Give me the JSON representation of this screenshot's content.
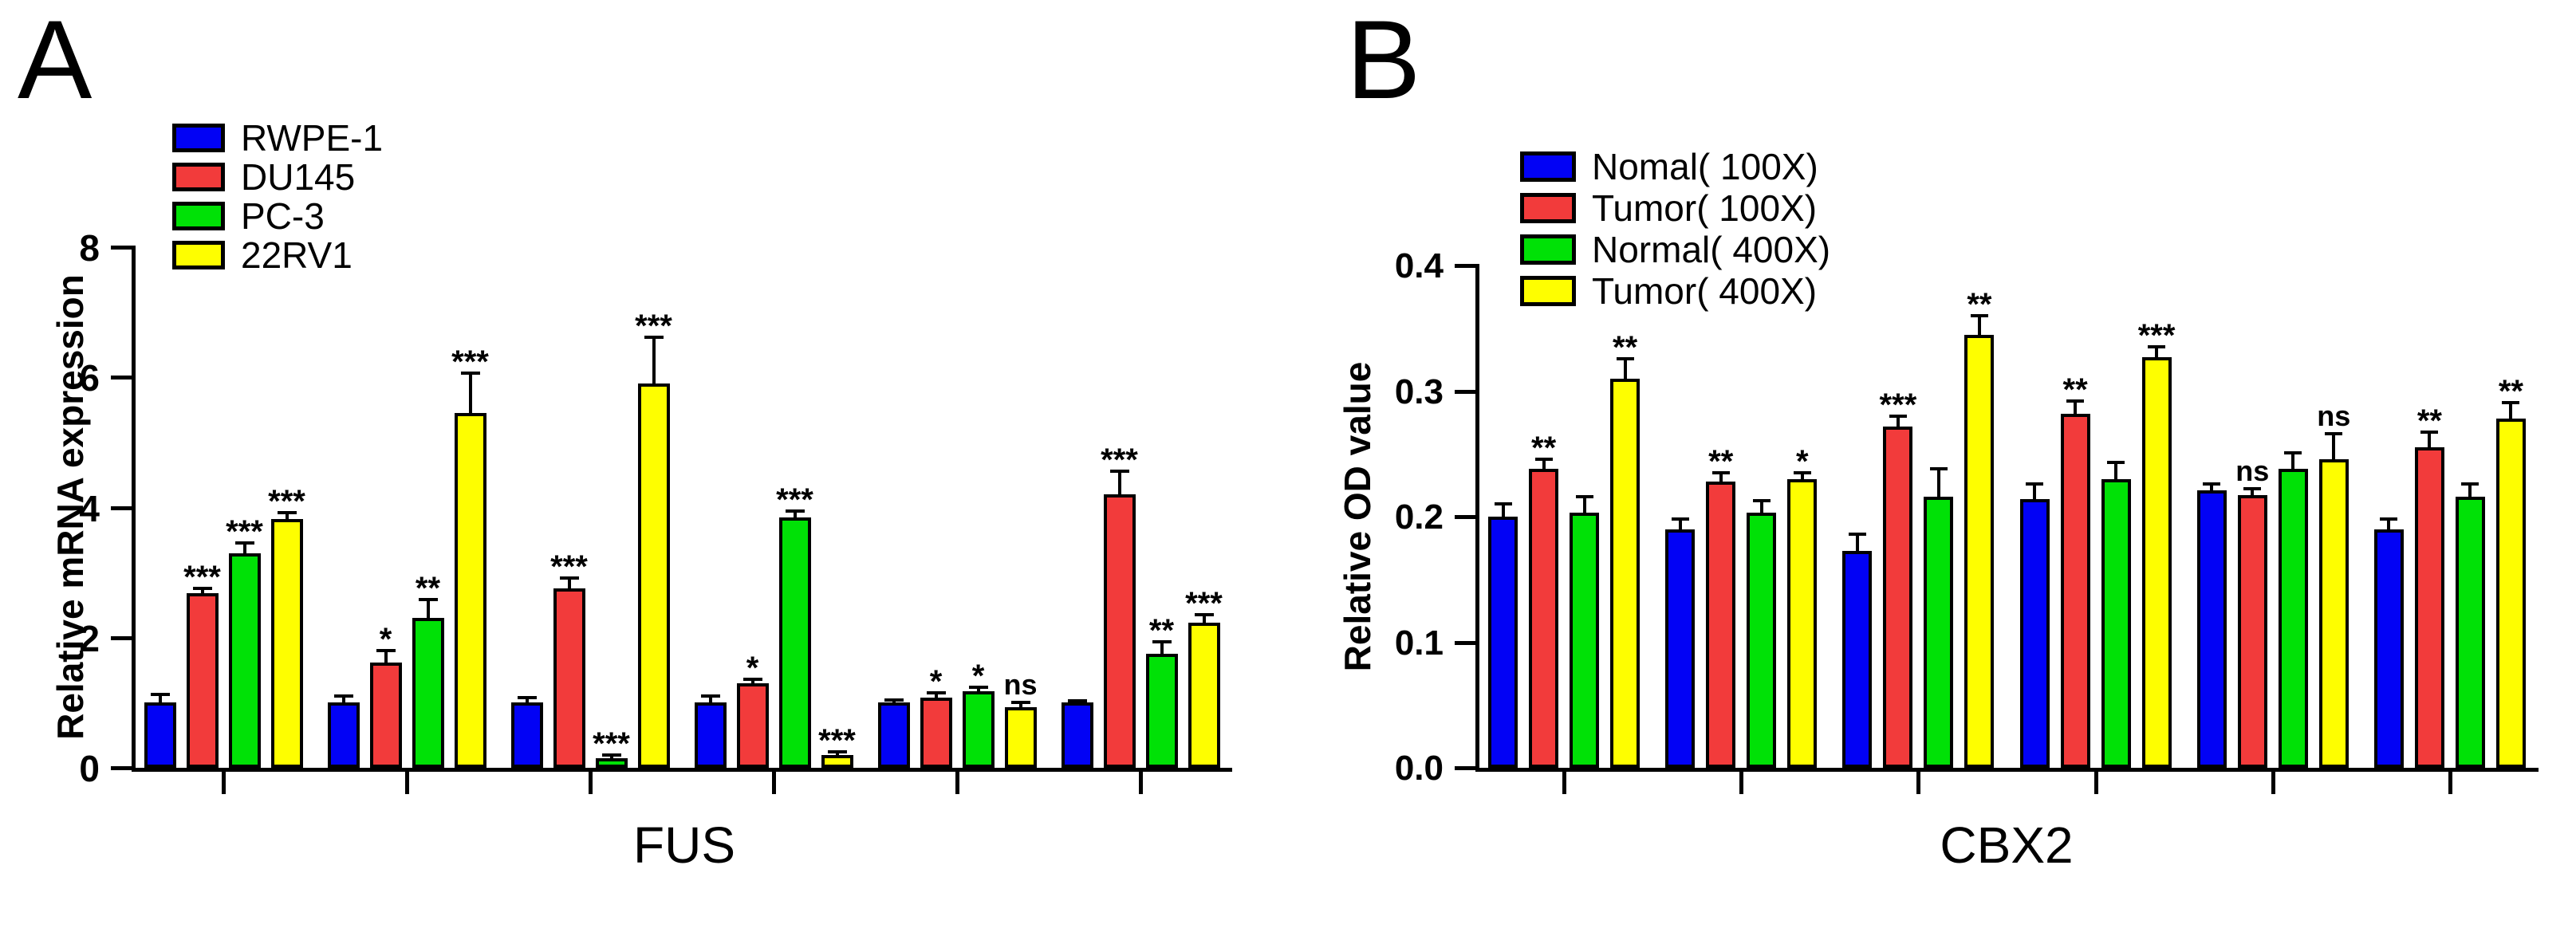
{
  "chart_data": [
    {
      "panel_letter": "A",
      "type": "bar",
      "title": "FUS",
      "ylabel": "Relative mRNA expression",
      "ylim": [
        0,
        8
      ],
      "yticks": [
        {
          "value": 0,
          "label": "0"
        },
        {
          "value": 2,
          "label": "2"
        },
        {
          "value": 4,
          "label": "4"
        },
        {
          "value": 6,
          "label": "6"
        },
        {
          "value": 8,
          "label": "8"
        }
      ],
      "grid": false,
      "legend_position": "top-left-inside",
      "error_bars": "sd-up-only",
      "x_tick_labels": [
        "",
        "",
        "",
        "",
        "",
        ""
      ],
      "group_count": 6,
      "series": [
        {
          "name": "RWPE-1",
          "color": "#0202F5",
          "values": [
            1.0,
            1.0,
            1.0,
            1.0,
            1.0,
            1.0
          ],
          "errors": [
            0.13,
            0.1,
            0.08,
            0.1,
            0.04,
            0.03
          ],
          "significance": [
            null,
            null,
            null,
            null,
            null,
            null
          ]
        },
        {
          "name": "DU145",
          "color": "#F23B3B",
          "values": [
            2.68,
            1.62,
            2.76,
            1.3,
            1.08,
            4.2
          ],
          "errors": [
            0.08,
            0.18,
            0.16,
            0.06,
            0.07,
            0.36
          ],
          "significance": [
            "***",
            "*",
            "***",
            "*",
            "*",
            "***"
          ]
        },
        {
          "name": "PC-3",
          "color": "#00E106",
          "values": [
            3.3,
            2.3,
            0.15,
            3.85,
            1.17,
            1.75
          ],
          "errors": [
            0.15,
            0.28,
            0.05,
            0.09,
            0.07,
            0.18
          ],
          "significance": [
            "***",
            "**",
            "***",
            "***",
            "*",
            "**"
          ]
        },
        {
          "name": "22RV1",
          "color": "#FEFE00",
          "values": [
            3.82,
            5.45,
            5.9,
            0.2,
            0.93,
            2.23
          ],
          "errors": [
            0.1,
            0.62,
            0.72,
            0.05,
            0.07,
            0.12
          ],
          "significance": [
            "***",
            "***",
            "***",
            "***",
            "ns",
            "***"
          ]
        }
      ]
    },
    {
      "panel_letter": "B",
      "type": "bar",
      "title": "CBX2",
      "ylabel": "Relative OD value",
      "ylim": [
        0,
        0.4
      ],
      "yticks": [
        {
          "value": 0.0,
          "label": "0.0"
        },
        {
          "value": 0.1,
          "label": "0.1"
        },
        {
          "value": 0.2,
          "label": "0.2"
        },
        {
          "value": 0.3,
          "label": "0.3"
        },
        {
          "value": 0.4,
          "label": "0.4"
        }
      ],
      "grid": false,
      "legend_position": "top-left-inside",
      "error_bars": "sd-up-only",
      "x_tick_labels": [
        "",
        "",
        "",
        "",
        "",
        ""
      ],
      "group_count": 6,
      "series": [
        {
          "name": "Nomal( 100X)",
          "color": "#0202F5",
          "values": [
            0.2,
            0.19,
            0.173,
            0.214,
            0.221,
            0.19
          ],
          "errors": [
            0.01,
            0.008,
            0.013,
            0.012,
            0.005,
            0.008
          ],
          "significance": [
            null,
            null,
            null,
            null,
            null,
            null
          ]
        },
        {
          "name": "Tumor( 100X)",
          "color": "#F23B3B",
          "values": [
            0.238,
            0.228,
            0.272,
            0.282,
            0.217,
            0.255
          ],
          "errors": [
            0.008,
            0.007,
            0.008,
            0.01,
            0.005,
            0.012
          ],
          "significance": [
            "**",
            "**",
            "***",
            "**",
            "ns",
            "**"
          ]
        },
        {
          "name": "Normal( 400X)",
          "color": "#00E106",
          "values": [
            0.203,
            0.203,
            0.216,
            0.23,
            0.238,
            0.216
          ],
          "errors": [
            0.013,
            0.01,
            0.022,
            0.013,
            0.013,
            0.01
          ],
          "significance": [
            null,
            null,
            null,
            null,
            null,
            null
          ]
        },
        {
          "name": "Tumor( 400X)",
          "color": "#FEFE00",
          "values": [
            0.31,
            0.23,
            0.345,
            0.327,
            0.246,
            0.278
          ],
          "errors": [
            0.016,
            0.005,
            0.015,
            0.008,
            0.02,
            0.013
          ],
          "significance": [
            "**",
            "*",
            "**",
            "***",
            "ns",
            "**"
          ]
        }
      ]
    }
  ]
}
